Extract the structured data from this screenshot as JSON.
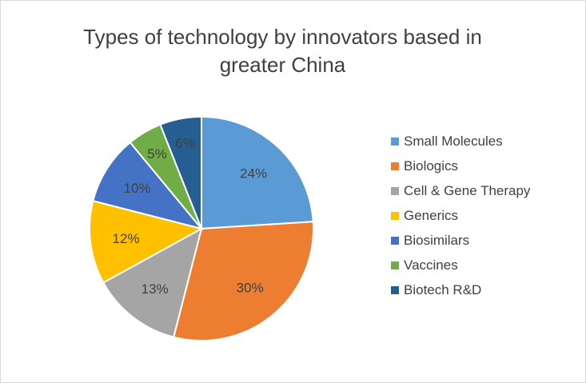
{
  "chart_data": {
    "type": "pie",
    "title": "Types of technology by innovators based in greater China",
    "title_lines": [
      "Types of technology by innovators based in",
      "greater China"
    ],
    "categories": [
      "Small Molecules",
      "Biologics",
      "Cell & Gene Therapy",
      "Generics",
      "Biosimilars",
      "Vaccines",
      "Biotech R&D"
    ],
    "values": [
      24,
      30,
      13,
      12,
      10,
      5,
      6
    ],
    "labels": [
      "24%",
      "30%",
      "13%",
      "12%",
      "10%",
      "5%",
      "6%"
    ],
    "colors": [
      "#5B9BD5",
      "#ED7D31",
      "#A5A5A5",
      "#FFC000",
      "#4472C4",
      "#70AD47",
      "#255E91"
    ],
    "legend_position": "right"
  }
}
